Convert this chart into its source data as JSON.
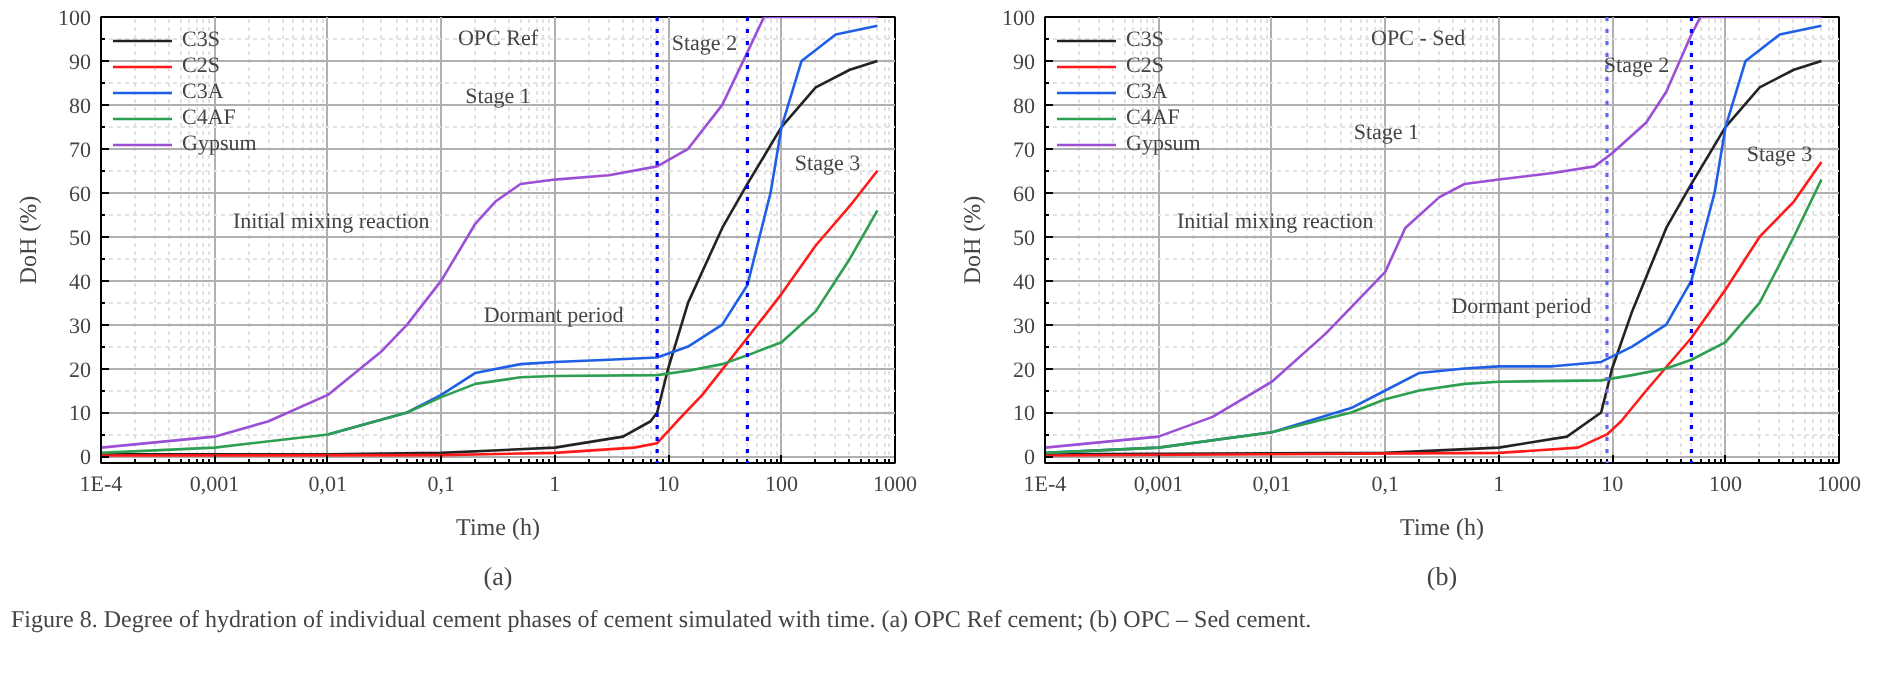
{
  "chart_data": [
    {
      "type": "line",
      "title": "OPC Ref",
      "xlabel": "Time (h)",
      "ylabel": "DoH (%)",
      "log": "x",
      "grid": true,
      "legend": "top left",
      "line_style": "solid",
      "marker": "none",
      "xlim": [
        0.0001,
        1000
      ],
      "ylim": [
        -1.5,
        100
      ],
      "xticks": [
        {
          "value": 0.0001,
          "label": "1E-4"
        },
        {
          "value": 0.001,
          "label": "0,001"
        },
        {
          "value": 0.01,
          "label": "0,01"
        },
        {
          "value": 0.1,
          "label": "0,1"
        },
        1,
        10,
        100,
        1000
      ],
      "yticks": [
        0,
        10,
        20,
        30,
        40,
        50,
        60,
        70,
        80,
        90,
        100
      ],
      "series": [
        {
          "name": "C3S",
          "color": "#222222",
          "x": [
            0.0001,
            0.01,
            0.1,
            1,
            4,
            7,
            8,
            10,
            15,
            30,
            50,
            100,
            200,
            400,
            700
          ],
          "values": [
            0.5,
            0.5,
            0.8,
            2,
            4.5,
            8,
            10,
            20,
            35,
            52,
            62,
            75,
            84,
            88,
            90
          ]
        },
        {
          "name": "C2S",
          "color": "#ff1a1a",
          "x": [
            0.0001,
            0.1,
            1,
            5,
            8,
            12,
            20,
            50,
            100,
            200,
            400,
            700
          ],
          "values": [
            0.2,
            0.3,
            0.8,
            2,
            3,
            8,
            14,
            27,
            37,
            48,
            57,
            65
          ]
        },
        {
          "name": "C3A",
          "color": "#1f5fe6",
          "x": [
            0.01,
            0.05,
            0.1,
            0.2,
            0.5,
            1,
            3,
            8,
            15,
            30,
            50,
            80,
            100,
            150,
            300,
            700
          ],
          "values": [
            5,
            10,
            14,
            19,
            21,
            21.5,
            22,
            22.5,
            25,
            30,
            39,
            60,
            75,
            90,
            96,
            98
          ]
        },
        {
          "name": "C4AF",
          "color": "#2e9e4f",
          "x": [
            0.0001,
            0.001,
            0.01,
            0.05,
            0.1,
            0.2,
            0.5,
            1,
            8,
            15,
            30,
            50,
            100,
            200,
            400,
            700
          ],
          "values": [
            0.8,
            2,
            5,
            10,
            13.5,
            16.5,
            18,
            18.3,
            18.5,
            19.5,
            21,
            23,
            26,
            33,
            45,
            56
          ]
        },
        {
          "name": "Gypsum",
          "color": "#9b4fd6",
          "x": [
            0.0001,
            0.001,
            0.003,
            0.01,
            0.03,
            0.05,
            0.1,
            0.2,
            0.3,
            0.5,
            1,
            3,
            8,
            15,
            30,
            50,
            70,
            700
          ],
          "values": [
            2,
            4.5,
            8,
            14,
            24,
            30,
            40,
            53,
            58,
            62,
            63,
            64,
            66,
            70,
            80,
            92,
            100,
            100
          ]
        }
      ],
      "ref_lines": [
        {
          "axis": "x",
          "value": 8,
          "color": "#0000ff",
          "line_style": "dotted"
        },
        {
          "axis": "x",
          "value": 50,
          "color": "#0000ff",
          "line_style": "dotted"
        }
      ],
      "annotations": [
        "(a)",
        "Stage 1",
        "Stage 2",
        "Stage 3",
        "Initial mixing reaction",
        "Dormant period"
      ]
    },
    {
      "type": "line",
      "title": "OPC - Sed",
      "xlabel": "Time (h)",
      "ylabel": "DoH (%)",
      "log": "x",
      "grid": true,
      "legend": "top left",
      "line_style": "solid",
      "marker": "none",
      "xlim": [
        0.0001,
        1000
      ],
      "ylim": [
        -1.5,
        100
      ],
      "xticks": [
        {
          "value": 0.0001,
          "label": "1E-4"
        },
        {
          "value": 0.001,
          "label": "0,001"
        },
        {
          "value": 0.01,
          "label": "0,01"
        },
        {
          "value": 0.1,
          "label": "0,1"
        },
        1,
        10,
        100,
        1000
      ],
      "yticks": [
        0,
        10,
        20,
        30,
        40,
        50,
        60,
        70,
        80,
        90,
        100
      ],
      "series": [
        {
          "name": "C3S",
          "color": "#222222",
          "x": [
            0.0001,
            0.1,
            1,
            4,
            8,
            10,
            15,
            30,
            50,
            100,
            200,
            400,
            700
          ],
          "values": [
            0.5,
            0.8,
            2,
            4.5,
            10,
            20,
            33,
            52,
            62,
            75,
            84,
            88,
            90
          ]
        },
        {
          "name": "C2S",
          "color": "#ff1a1a",
          "x": [
            0.0001,
            1,
            5,
            9,
            12,
            20,
            50,
            100,
            200,
            400,
            700
          ],
          "values": [
            0.2,
            0.8,
            2,
            5,
            8,
            15,
            27,
            38,
            50,
            58,
            67
          ]
        },
        {
          "name": "C3A",
          "color": "#1f5fe6",
          "x": [
            0.0001,
            0.001,
            0.01,
            0.05,
            0.1,
            0.2,
            0.5,
            1,
            3,
            8,
            15,
            30,
            50,
            80,
            100,
            150,
            300,
            700
          ],
          "values": [
            0.8,
            2,
            5.5,
            11,
            15,
            19,
            20,
            20.5,
            20.5,
            21.5,
            25,
            30,
            40,
            60,
            75,
            90,
            96,
            98
          ]
        },
        {
          "name": "C4AF",
          "color": "#2e9e4f",
          "x": [
            0.0001,
            0.001,
            0.01,
            0.05,
            0.1,
            0.2,
            0.5,
            1,
            8,
            15,
            30,
            50,
            100,
            200,
            400,
            700
          ],
          "values": [
            0.8,
            2,
            5.5,
            10,
            13,
            15,
            16.5,
            17,
            17.3,
            18.5,
            20,
            22,
            26,
            35,
            50,
            63
          ]
        },
        {
          "name": "Gypsum",
          "color": "#9b4fd6",
          "x": [
            0.0001,
            0.001,
            0.003,
            0.01,
            0.03,
            0.1,
            0.15,
            0.3,
            0.5,
            1,
            3,
            7,
            10,
            20,
            30,
            50,
            60,
            700
          ],
          "values": [
            2,
            4.5,
            9,
            17,
            28,
            42,
            52,
            59,
            62,
            63,
            64.5,
            66,
            69,
            76,
            83,
            96,
            100,
            100
          ]
        }
      ],
      "ref_lines": [
        {
          "axis": "x",
          "value": 9,
          "color": "#6666ff",
          "line_style": "dotted"
        },
        {
          "axis": "x",
          "value": 50,
          "color": "#0000ff",
          "line_style": "dotted"
        }
      ],
      "annotations": [
        "(b)",
        "Stage 1",
        "Stage 2",
        "Stage 3",
        "Initial mixing reaction",
        "Dormant period",
        "Figure 8. Degree of hydration of individual cement phases of cement simulated with time. (a) OPC Ref cement; (b) OPC – Sed cement."
      ]
    }
  ]
}
